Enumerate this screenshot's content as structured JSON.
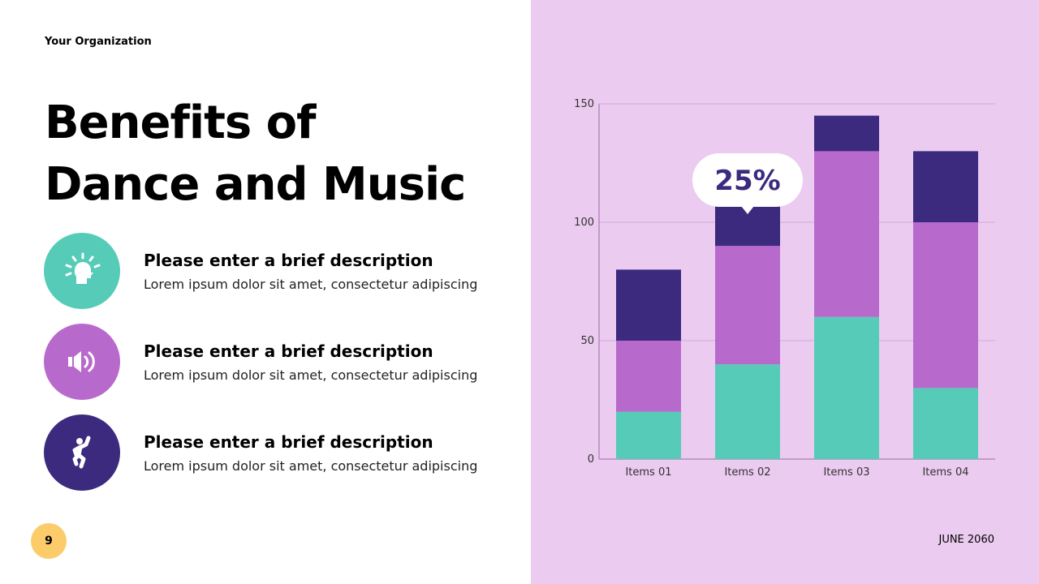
{
  "header": {
    "organization": "Your Organization",
    "title_line1": "Benefits of",
    "title_line2": "Dance and Music"
  },
  "items": [
    {
      "icon": "head-lightbulb-icon",
      "color": "#56ccb8",
      "heading": "Please enter a brief description",
      "body": "Lorem ipsum dolor sit amet, consectetur adipiscing"
    },
    {
      "icon": "speaker-icon",
      "color": "#b86acc",
      "heading": "Please enter a brief description",
      "body": "Lorem ipsum dolor sit amet, consectetur adipiscing"
    },
    {
      "icon": "dancer-icon",
      "color": "#3b2a7e",
      "heading": "Please enter a brief description",
      "body": "Lorem ipsum dolor sit amet, consectetur adipiscing"
    }
  ],
  "footer": {
    "page_number": "9",
    "date": "JUNE 2060"
  },
  "chart_data": {
    "type": "bar",
    "stacked": true,
    "categories": [
      "Items 01",
      "Items 02",
      "Items 03",
      "Items 04"
    ],
    "series": [
      {
        "values": [
          20,
          40,
          60,
          30
        ],
        "color": "#56ccb8"
      },
      {
        "values": [
          30,
          50,
          70,
          70
        ],
        "color": "#b86acc"
      },
      {
        "values": [
          30,
          20,
          15,
          30
        ],
        "color": "#3b2a7e"
      }
    ],
    "ylim": [
      0,
      150
    ],
    "yticks": [
      0,
      50,
      100,
      150
    ],
    "grid": true,
    "annotation": {
      "text": "25%",
      "category": "Items 02"
    }
  }
}
